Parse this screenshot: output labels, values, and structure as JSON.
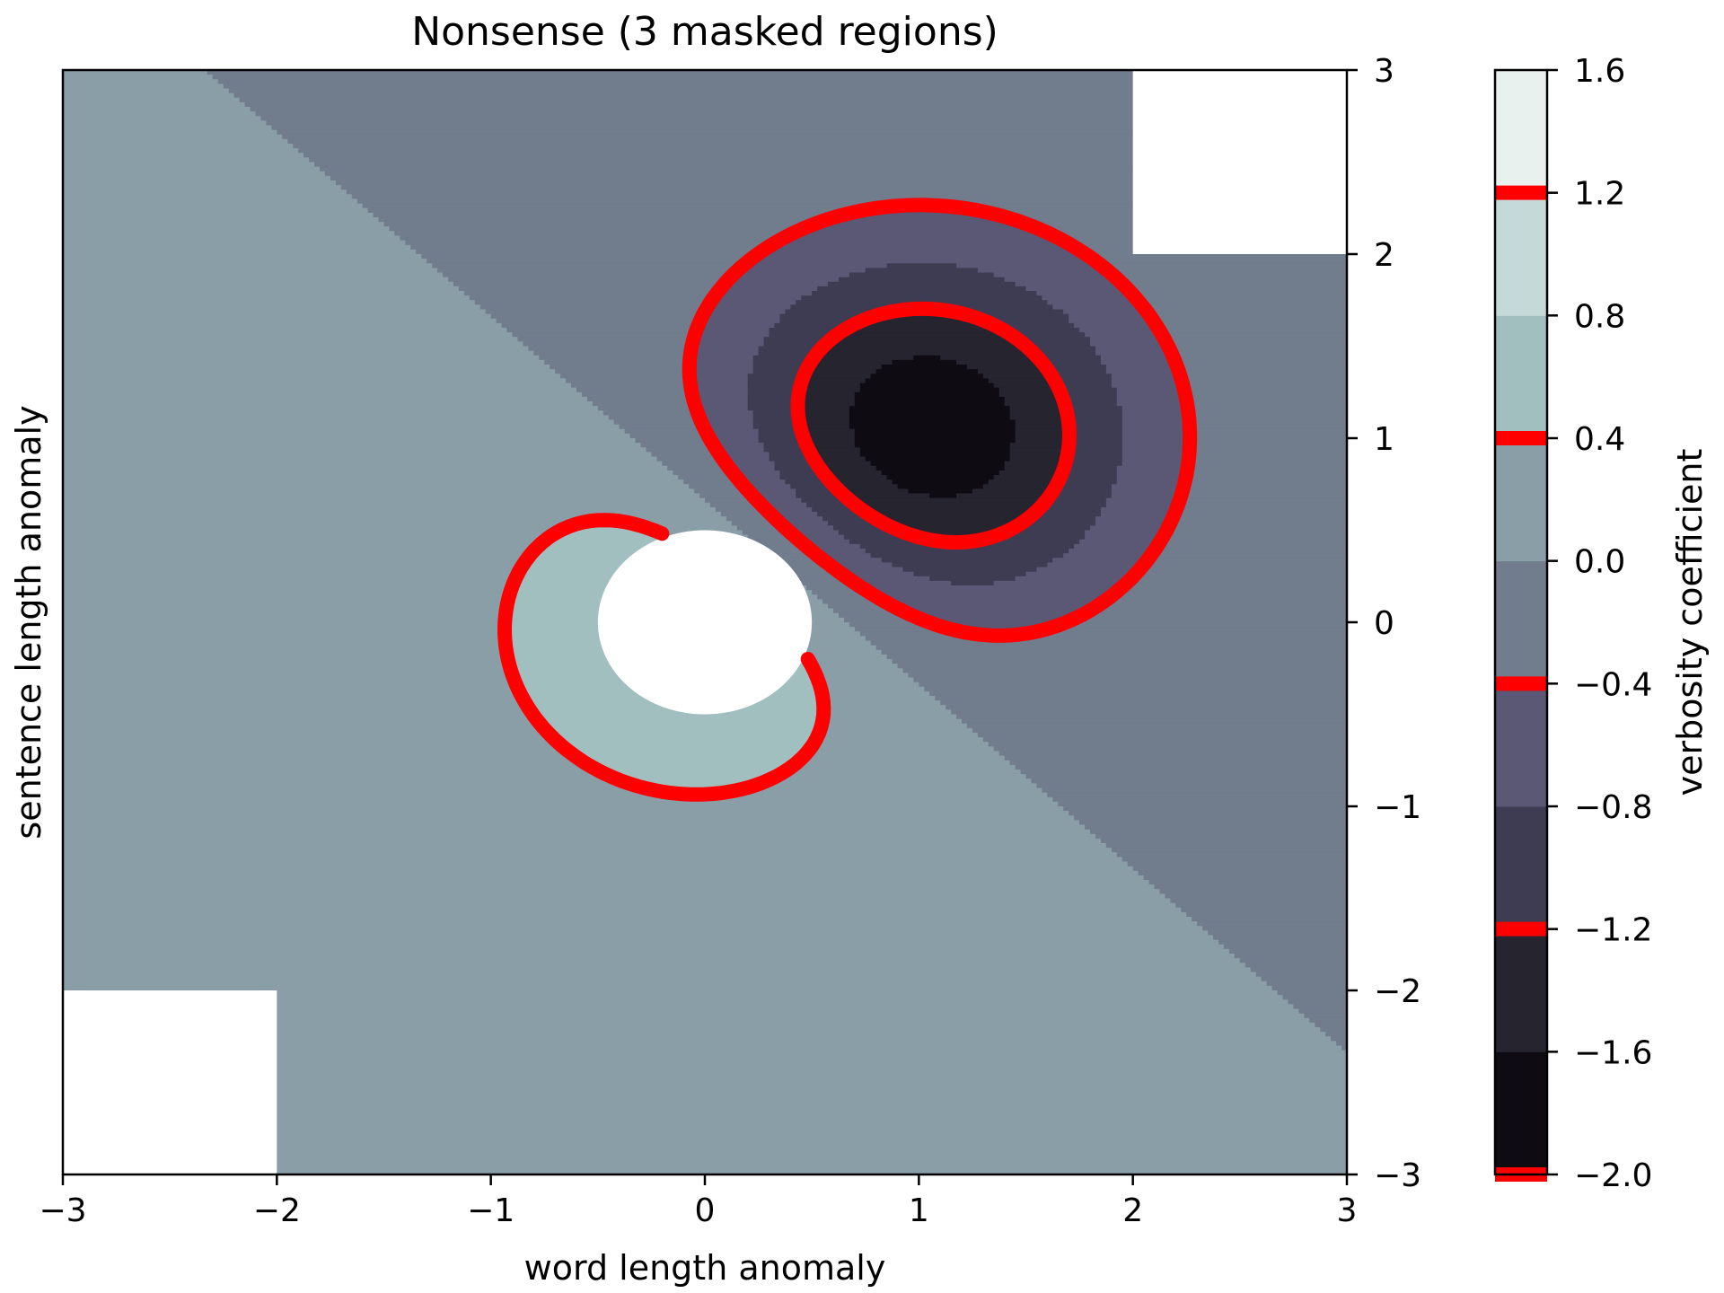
{
  "chart_data": {
    "type": "contourf",
    "title": "Nonsense (3 masked regions)",
    "xlabel": "word length anomaly",
    "ylabel": "sentence length anomaly",
    "colorbar_label": "verbosity coefficient",
    "xlim": [
      -3,
      3
    ],
    "ylim": [
      -3,
      3
    ],
    "x_ticks": [
      -3,
      -2,
      -1,
      0,
      1,
      2,
      3
    ],
    "x_tick_labels": [
      "−3",
      "−2",
      "−1",
      "0",
      "1",
      "2",
      "3"
    ],
    "y_ticks": [
      -3,
      -2,
      -1,
      0,
      1,
      2,
      3
    ],
    "y_tick_labels": [
      "−3",
      "−2",
      "−1",
      "0",
      "1",
      "2",
      "3"
    ],
    "y_axis_side": "right",
    "grid": false,
    "field": "Z = 1.0*exp(-x^2 - y^2) - 2.0*exp(-(x-1)^2 - (y-1)^2)",
    "levels": [
      -2.0,
      -1.6,
      -1.2,
      -0.8,
      -0.4,
      0.0,
      0.4,
      0.8,
      1.2,
      1.6
    ],
    "level_labels": [
      "−2.0",
      "−1.6",
      "−1.2",
      "−0.8",
      "−0.4",
      "0.0",
      "0.4",
      "0.8",
      "1.2",
      "1.6"
    ],
    "band_colors": [
      "#0e0c12",
      "#25242f",
      "#3e3c53",
      "#5a5874",
      "#717c8c",
      "#8a9ea8",
      "#a2bfc0",
      "#c5dad8",
      "#e9f1ef"
    ],
    "contour_lines": [
      -2.0,
      -1.2,
      -0.4,
      0.4,
      1.2
    ],
    "contour_line_color": "#ff0000",
    "masked_regions": [
      {
        "name": "top-right corner",
        "x": [
          2,
          3
        ],
        "y": [
          2,
          3
        ]
      },
      {
        "name": "bottom-left corner",
        "x": [
          -3,
          -2
        ],
        "y": [
          -3,
          -2
        ]
      },
      {
        "name": "circle",
        "center": [
          0,
          0
        ],
        "radius": 0.5
      }
    ]
  }
}
